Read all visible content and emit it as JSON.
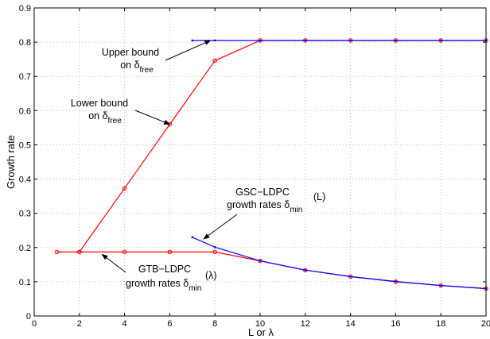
{
  "chart_data": {
    "type": "line",
    "xlabel": "L or λ",
    "ylabel": "Growth rate",
    "xlim": [
      0,
      20
    ],
    "ylim": [
      0,
      0.9
    ],
    "xticks": [
      0,
      2,
      4,
      6,
      8,
      10,
      12,
      14,
      16,
      18,
      20
    ],
    "yticks": [
      0,
      0.1,
      0.2,
      0.3,
      0.4,
      0.5,
      0.6,
      0.7,
      0.8,
      0.9
    ],
    "grid": true,
    "colors": {
      "red": "#ff0000",
      "blue": "#0000ff"
    },
    "series": [
      {
        "color": "#ff0000",
        "marker": "circle",
        "x": [
          2,
          4,
          6,
          8,
          10,
          12,
          14,
          16,
          18,
          20
        ],
        "y": [
          0.187,
          0.373,
          0.56,
          0.746,
          0.805,
          0.805,
          0.805,
          0.805,
          0.805,
          0.805
        ]
      },
      {
        "color": "#ff0000",
        "marker": "circle",
        "x": [
          1,
          2,
          4,
          6,
          8,
          10,
          12,
          14,
          16,
          18,
          20
        ],
        "y": [
          0.187,
          0.187,
          0.187,
          0.187,
          0.187,
          0.161,
          0.134,
          0.115,
          0.1,
          0.089,
          0.08
        ]
      },
      {
        "color": "#0000ff",
        "marker": "dot",
        "x": [
          7,
          8,
          10,
          12,
          14,
          16,
          18,
          20
        ],
        "y": [
          0.805,
          0.805,
          0.805,
          0.805,
          0.805,
          0.805,
          0.805,
          0.805
        ]
      },
      {
        "color": "#0000ff",
        "marker": "dot",
        "x": [
          7,
          8,
          10,
          12,
          14,
          16,
          18,
          20
        ],
        "y": [
          0.23,
          0.201,
          0.161,
          0.134,
          0.115,
          0.101,
          0.089,
          0.08
        ]
      }
    ],
    "annotations": [
      {
        "lines": [
          "Upper bound",
          "on δ"
        ],
        "sub": "free",
        "arrow_to": [
          7.8,
          0.805
        ]
      },
      {
        "lines": [
          "Lower bound",
          "on δ"
        ],
        "sub": "free",
        "arrow_to": [
          6.0,
          0.56
        ]
      },
      {
        "lines": [
          "GSC−LDPC",
          "growth rates  δ"
        ],
        "sub": "min",
        "sup": "(L)",
        "arrow_to": [
          7.5,
          0.225
        ]
      },
      {
        "lines": [
          "GTB−LDPC",
          "growth rates  δ"
        ],
        "sub": "min",
        "sup": "(λ)",
        "arrow_to": [
          3.0,
          0.18
        ]
      }
    ]
  }
}
